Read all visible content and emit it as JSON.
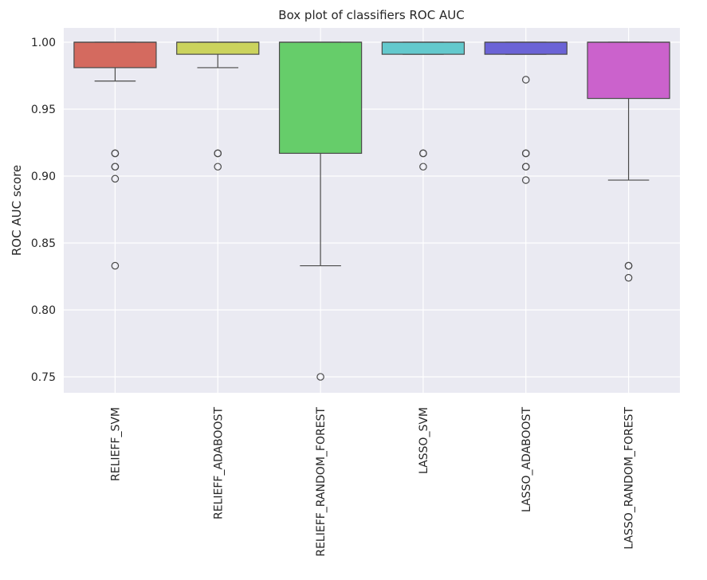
{
  "chart_data": {
    "type": "box",
    "title": "Box plot of classifiers ROC AUC",
    "xlabel": "",
    "ylabel": "ROC AUC score",
    "ylim": [
      0.738,
      1.01
    ],
    "yticks": [
      0.75,
      0.8,
      0.85,
      0.9,
      0.95,
      1.0
    ],
    "ytick_labels": [
      "0.75",
      "0.80",
      "0.85",
      "0.90",
      "0.95",
      "1.00"
    ],
    "grid": true,
    "categories": [
      "RELIEFF_SVM",
      "RELIEFF_ADABOOST",
      "RELIEFF_RANDOM_FOREST",
      "LASSO_SVM",
      "LASSO_ADABOOST",
      "LASSO_RANDOM_FOREST"
    ],
    "series": [
      {
        "name": "RELIEFF_SVM",
        "color": "#d46a5f",
        "whisker_low": 0.971,
        "q1": 0.981,
        "median": 1.0,
        "q3": 1.0,
        "whisker_high": 1.0,
        "outliers": [
          0.917,
          0.917,
          0.907,
          0.907,
          0.898,
          0.833
        ]
      },
      {
        "name": "RELIEFF_ADABOOST",
        "color": "#cbd35d",
        "whisker_low": 0.981,
        "q1": 0.991,
        "median": 1.0,
        "q3": 1.0,
        "whisker_high": 1.0,
        "outliers": [
          0.917,
          0.917,
          0.907
        ]
      },
      {
        "name": "RELIEFF_RANDOM_FOREST",
        "color": "#66cd6a",
        "whisker_low": 0.833,
        "q1": 0.917,
        "median": 1.0,
        "q3": 1.0,
        "whisker_high": 1.0,
        "outliers": [
          0.75
        ]
      },
      {
        "name": "LASSO_SVM",
        "color": "#63c9cd",
        "whisker_low": 0.991,
        "q1": 0.991,
        "median": 1.0,
        "q3": 1.0,
        "whisker_high": 1.0,
        "outliers": [
          0.917,
          0.917,
          0.907
        ]
      },
      {
        "name": "LASSO_ADABOOST",
        "color": "#6b63d6",
        "whisker_low": 0.991,
        "q1": 0.991,
        "median": 1.0,
        "q3": 1.0,
        "whisker_high": 1.0,
        "outliers": [
          0.972,
          0.917,
          0.917,
          0.907,
          0.907,
          0.897
        ]
      },
      {
        "name": "LASSO_RANDOM_FOREST",
        "color": "#cb62cc",
        "whisker_low": 0.897,
        "q1": 0.958,
        "median": 1.0,
        "q3": 1.0,
        "whisker_high": 1.0,
        "outliers": [
          0.833,
          0.833,
          0.824
        ]
      }
    ]
  }
}
